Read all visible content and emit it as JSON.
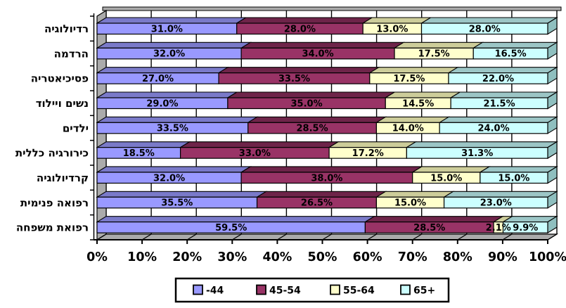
{
  "chart_data": {
    "type": "bar",
    "variant": "3d-horizontal-stacked",
    "title": "",
    "categories": [
      "רדיולוגיה",
      "הרדמה",
      "פסיכיאטריה",
      "נשים ויילוד",
      "ילדים",
      "כירורגיה כללית",
      "קרדיולוגיה",
      "רפואה פנימית",
      "רפואת משפחה"
    ],
    "series": [
      {
        "name": "-44",
        "color": "#9999FF",
        "top_color": "#7A7AC9",
        "values": [
          31.0,
          32.0,
          27.0,
          29.0,
          33.5,
          18.5,
          32.0,
          35.5,
          59.5
        ]
      },
      {
        "name": "45-54",
        "color": "#993366",
        "top_color": "#6E2449",
        "values": [
          28.0,
          34.0,
          33.5,
          35.0,
          28.5,
          33.0,
          38.0,
          26.5,
          28.5
        ]
      },
      {
        "name": "55-64",
        "color": "#FFFFCC",
        "top_color": "#CDCD9A",
        "values": [
          13.0,
          17.5,
          17.5,
          14.5,
          14.0,
          17.2,
          15.0,
          15.0,
          2.1
        ]
      },
      {
        "name": "65+",
        "color": "#CCFFFF",
        "top_color": "#9CC6C6",
        "cap_color": "#8FBFBF",
        "values": [
          28.0,
          16.5,
          22.0,
          21.5,
          24.0,
          31.3,
          15.0,
          23.0,
          9.9
        ]
      }
    ],
    "x_ticks": [
      "0%",
      "10%",
      "20%",
      "30%",
      "40%",
      "50%",
      "60%",
      "70%",
      "80%",
      "90%",
      "100%"
    ],
    "xlim": [
      0,
      100
    ],
    "value_suffix": "%",
    "value_decimals": 1,
    "grid": true,
    "legend_position": "bottom"
  },
  "colors": {
    "background": "#FFFFFF",
    "wall_gray": "#ABABAB",
    "outline": "#000000",
    "label_text": "#000000"
  }
}
